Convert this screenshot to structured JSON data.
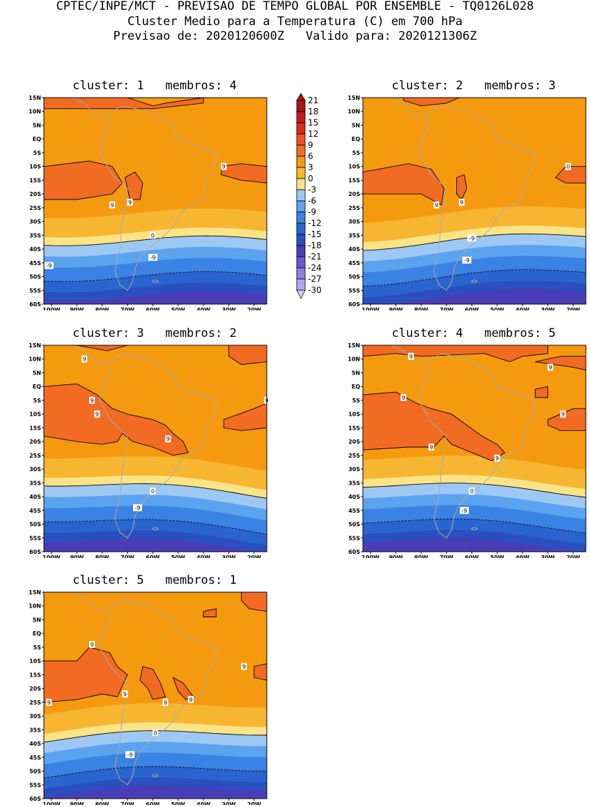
{
  "header": {
    "line1": "CPTEC/INPE/MCT - PREVISAO DE TEMPO GLOBAL POR ENSEMBLE - TQ0126L028",
    "line2": "Cluster Medio para a Temperatura (C) em 700 hPa",
    "line3": "Previsao de: 2020120600Z   Valido para: 2020121306Z"
  },
  "axes": {
    "lat_ticks": [
      "15N",
      "10N",
      "5N",
      "EQ",
      "5S",
      "10S",
      "15S",
      "20S",
      "25S",
      "30S",
      "35S",
      "40S",
      "45S",
      "50S",
      "55S",
      "60S"
    ],
    "lon_ticks": [
      "100W",
      "90W",
      "80W",
      "70W",
      "60W",
      "50W",
      "40W",
      "30W",
      "20W"
    ]
  },
  "colorbar": {
    "labels": [
      "21",
      "18",
      "15",
      "12",
      "9",
      "6",
      "3",
      "0",
      "-3",
      "-6",
      "-9",
      "-12",
      "-15",
      "-18",
      "-21",
      "-24",
      "-27",
      "-30"
    ],
    "colors": [
      "#a8151a",
      "#c01b1f",
      "#dd2a1d",
      "#f0501d",
      "#f26b22",
      "#f59a0f",
      "#f7b632",
      "#fbe487",
      "#9ec8f4",
      "#5ba3ef",
      "#3a82e4",
      "#2a64cf",
      "#2a50c0",
      "#4a3eb8",
      "#6a55d4",
      "#8e7ee6",
      "#b2a8f0",
      "#d4d0f7"
    ]
  },
  "panels": [
    {
      "title": "cluster: 1   membros: 4",
      "contour_labels": [
        "9",
        "9",
        "9",
        "0",
        "-9",
        "-9"
      ]
    },
    {
      "title": "cluster: 2   membros: 3",
      "contour_labels": [
        "9",
        "9",
        "0",
        "-9",
        "-9"
      ]
    },
    {
      "title": "cluster: 3   membros: 2",
      "contour_labels": [
        "9",
        "9",
        "9",
        "9",
        "9",
        "0",
        "-9"
      ]
    },
    {
      "title": "cluster: 4   membros: 5",
      "contour_labels": [
        "9",
        "9",
        "9",
        "9",
        "9",
        "9",
        "0",
        "-9"
      ]
    },
    {
      "title": "cluster: 5   membros: 1",
      "contour_labels": [
        "9",
        "9",
        "9",
        "9",
        "9",
        "9",
        "0",
        "-9"
      ]
    }
  ]
}
